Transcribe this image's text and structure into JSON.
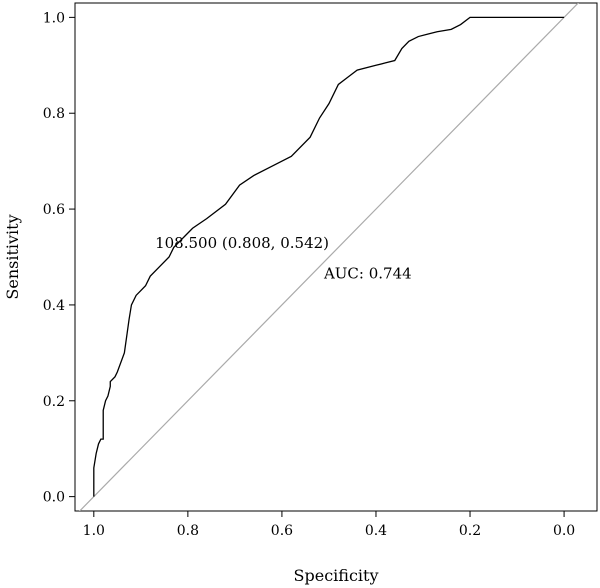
{
  "chart_data": {
    "type": "line",
    "title": "",
    "xlabel": "Specificity",
    "ylabel": "Sensitivity",
    "x_reversed": true,
    "xlim": [
      1.04,
      -0.07
    ],
    "ylim": [
      -0.03,
      1.03
    ],
    "x_ticks": [
      1.0,
      0.8,
      0.6,
      0.4,
      0.2,
      0.0
    ],
    "x_tick_labels": [
      "1.0",
      "0.8",
      "0.6",
      "0.4",
      "0.2",
      "0.0"
    ],
    "y_ticks": [
      0.0,
      0.2,
      0.4,
      0.6,
      0.8,
      1.0
    ],
    "y_tick_labels": [
      "0.0",
      "0.2",
      "0.4",
      "0.6",
      "0.8",
      "1.0"
    ],
    "grid": false,
    "colors": {
      "curve": "#000000",
      "reference": "#aaaaaa"
    },
    "series": [
      {
        "x": [
          1.0,
          1.0,
          0.995,
          0.99,
          0.985,
          0.98,
          0.98,
          0.975,
          0.97,
          0.965,
          0.965,
          0.955,
          0.95,
          0.935,
          0.925,
          0.92,
          0.91,
          0.9,
          0.89,
          0.88,
          0.86,
          0.84,
          0.83,
          0.81,
          0.808,
          0.79,
          0.76,
          0.72,
          0.69,
          0.66,
          0.62,
          0.58,
          0.54,
          0.52,
          0.5,
          0.48,
          0.46,
          0.44,
          0.4,
          0.38,
          0.36,
          0.345,
          0.33,
          0.31,
          0.29,
          0.27,
          0.24,
          0.22,
          0.2,
          0.16,
          0.1,
          0.05,
          0.0
        ],
        "y": [
          0.0,
          0.06,
          0.09,
          0.11,
          0.12,
          0.12,
          0.18,
          0.2,
          0.21,
          0.23,
          0.24,
          0.25,
          0.26,
          0.3,
          0.37,
          0.4,
          0.42,
          0.43,
          0.44,
          0.46,
          0.48,
          0.5,
          0.52,
          0.54,
          0.542,
          0.56,
          0.58,
          0.61,
          0.65,
          0.67,
          0.69,
          0.71,
          0.75,
          0.79,
          0.82,
          0.86,
          0.875,
          0.89,
          0.9,
          0.905,
          0.91,
          0.935,
          0.95,
          0.96,
          0.965,
          0.97,
          0.975,
          0.985,
          1.0,
          1.0,
          1.0,
          1.0,
          1.0
        ]
      }
    ],
    "reference_line": {
      "x": [
        1.0,
        0.0
      ],
      "y": [
        0.0,
        1.0
      ]
    },
    "annotations": [
      {
        "text": "108.500 (0.808, 0.542)",
        "x": 0.808,
        "y": 0.542
      },
      {
        "text": "AUC: 0.744",
        "x": 0.5,
        "y": 0.47
      }
    ]
  }
}
